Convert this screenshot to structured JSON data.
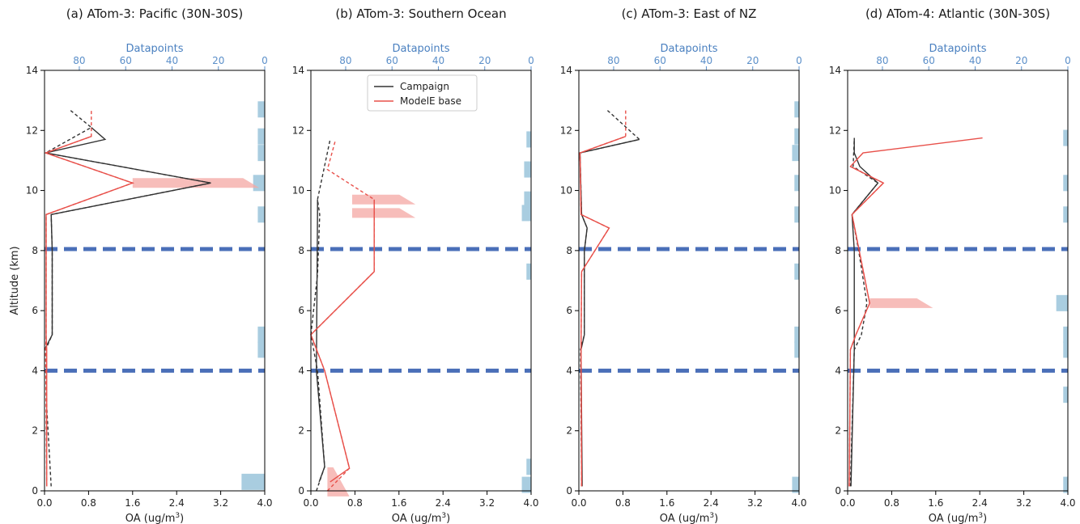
{
  "figure": {
    "ylabel": "Altitude (km)",
    "xlabel_prefix": "OA (ug/m",
    "xlabel_sup": "3",
    "xlabel_suffix": ")",
    "top_axis_label": "Datapoints",
    "colors": {
      "campaign": "#333333",
      "model": "#e8504a",
      "model_fill": "#f4a7a3",
      "bars": "#a9cde0",
      "hline": "#4a6fb8",
      "top_axis": "#5b8fc9"
    },
    "legend": {
      "campaign": "Campaign",
      "model": "ModelE base"
    }
  },
  "chart_data": [
    {
      "type": "line",
      "title": "(a) ATom-3: Pacific (30N-30S)",
      "xlim": [
        0,
        4.0
      ],
      "ylim": [
        0,
        14
      ],
      "xticks": [
        "0.0",
        "0.8",
        "1.6",
        "2.4",
        "3.2",
        "4.0"
      ],
      "yticks": [
        "0",
        "2",
        "4",
        "6",
        "8",
        "10",
        "12",
        "14"
      ],
      "top_xlim": [
        95,
        0
      ],
      "top_ticks": [
        "80",
        "60",
        "40",
        "20",
        "0"
      ],
      "hlines": [
        4.0,
        8.05
      ],
      "legend_shown": false,
      "series": [
        {
          "name": "Campaign",
          "style": "dashed",
          "points": [
            [
              0.12,
              0.15
            ],
            [
              0.04,
              2.8
            ],
            [
              0.02,
              4.7
            ],
            [
              0.14,
              5.2
            ],
            [
              0.14,
              8.0
            ],
            [
              0.12,
              9.2
            ],
            [
              3.02,
              10.25
            ],
            [
              0.02,
              11.25
            ],
            [
              0.85,
              12.1
            ],
            [
              0.45,
              12.7
            ]
          ]
        },
        {
          "name": "Campaign",
          "style": "solid",
          "points": [
            [
              0.0,
              4.7
            ],
            [
              0.14,
              5.2
            ],
            [
              0.14,
              8.0
            ],
            [
              0.12,
              9.2
            ],
            [
              3.02,
              10.25
            ],
            [
              0.02,
              11.25
            ],
            [
              1.1,
              11.7
            ],
            [
              0.85,
              12.1
            ]
          ]
        },
        {
          "name": "ModelE base",
          "style": "dashed",
          "points": [
            [
              0.04,
              0.15
            ],
            [
              0.02,
              4.7
            ],
            [
              0.03,
              5.2
            ],
            [
              0.03,
              8.0
            ],
            [
              0.03,
              9.2
            ],
            [
              1.6,
              10.25
            ],
            [
              0.02,
              11.25
            ],
            [
              0.85,
              11.8
            ],
            [
              0.85,
              12.7
            ]
          ]
        },
        {
          "name": "ModelE base",
          "style": "solid",
          "points": [
            [
              0.04,
              0.15
            ],
            [
              0.04,
              4.7
            ],
            [
              0.03,
              5.2
            ],
            [
              0.03,
              9.2
            ],
            [
              1.6,
              10.25
            ],
            [
              0.02,
              11.25
            ],
            [
              0.85,
              11.8
            ]
          ]
        }
      ],
      "datapoint_bars": [
        [
          0.3,
          10
        ],
        [
          4.7,
          3
        ],
        [
          5.2,
          3
        ],
        [
          9.2,
          3
        ],
        [
          10.25,
          5
        ],
        [
          11.25,
          3
        ],
        [
          11.8,
          3
        ],
        [
          12.7,
          3
        ]
      ],
      "model_spread": [
        [
          10.25,
          1.6,
          3.9
        ]
      ]
    },
    {
      "type": "line",
      "title": "(b) ATom-3: Southern Ocean",
      "xlim": [
        0,
        4.0
      ],
      "ylim": [
        0,
        14
      ],
      "xticks": [
        "0.0",
        "0.8",
        "1.6",
        "2.4",
        "3.2",
        "4.0"
      ],
      "yticks": [
        "0",
        "2",
        "4",
        "6",
        "8",
        "10",
        "12",
        "14"
      ],
      "top_xlim": [
        95,
        0
      ],
      "top_ticks": [
        "80",
        "60",
        "40",
        "20",
        "0"
      ],
      "hlines": [
        4.0,
        8.05
      ],
      "legend_shown": true,
      "series": [
        {
          "name": "Campaign",
          "style": "dashed",
          "points": [
            [
              0.1,
              0.0
            ],
            [
              0.25,
              0.8
            ],
            [
              0.12,
              4.0
            ],
            [
              0.0,
              5.2
            ],
            [
              0.12,
              7.2
            ],
            [
              0.16,
              9.2
            ],
            [
              0.12,
              9.7
            ],
            [
              0.35,
              11.7
            ]
          ]
        },
        {
          "name": "Campaign",
          "style": "solid",
          "points": [
            [
              0.15,
              0.3
            ],
            [
              0.25,
              0.8
            ],
            [
              0.1,
              4.0
            ],
            [
              0.12,
              9.25
            ],
            [
              0.12,
              9.7
            ]
          ]
        },
        {
          "name": "ModelE base",
          "style": "dashed",
          "points": [
            [
              0.3,
              0.0
            ],
            [
              0.7,
              0.75
            ],
            [
              0.25,
              4.0
            ],
            [
              0.0,
              5.2
            ],
            [
              1.15,
              7.3
            ],
            [
              1.15,
              9.7
            ],
            [
              0.3,
              10.7
            ],
            [
              0.45,
              11.7
            ]
          ]
        },
        {
          "name": "ModelE base",
          "style": "solid",
          "points": [
            [
              0.35,
              0.3
            ],
            [
              0.7,
              0.75
            ],
            [
              0.25,
              4.0
            ],
            [
              0.0,
              5.2
            ],
            [
              1.15,
              7.3
            ],
            [
              1.15,
              9.7
            ]
          ]
        }
      ],
      "datapoint_bars": [
        [
          0.2,
          4
        ],
        [
          0.8,
          2
        ],
        [
          7.3,
          2
        ],
        [
          9.25,
          4
        ],
        [
          9.7,
          3
        ],
        [
          10.7,
          3
        ],
        [
          11.7,
          2
        ]
      ],
      "model_spread": [
        [
          9.7,
          0.75,
          1.9
        ],
        [
          9.25,
          0.75,
          1.9
        ],
        [
          0.3,
          0.3,
          0.7
        ]
      ]
    },
    {
      "type": "line",
      "title": "(c) ATom-3: East of NZ",
      "xlim": [
        0,
        4.0
      ],
      "ylim": [
        0,
        14
      ],
      "xticks": [
        "0.0",
        "0.8",
        "1.6",
        "2.4",
        "3.2",
        "4.0"
      ],
      "yticks": [
        "0",
        "2",
        "4",
        "6",
        "8",
        "10",
        "12",
        "14"
      ],
      "top_xlim": [
        95,
        0
      ],
      "top_ticks": [
        "80",
        "60",
        "40",
        "20",
        "0"
      ],
      "hlines": [
        4.0,
        8.05
      ],
      "legend_shown": false,
      "series": [
        {
          "name": "Campaign",
          "style": "dashed",
          "points": [
            [
              0.05,
              0.15
            ],
            [
              0.03,
              4.7
            ],
            [
              0.1,
              5.2
            ],
            [
              0.1,
              8.0
            ],
            [
              0.15,
              8.75
            ],
            [
              0.05,
              9.2
            ],
            [
              0.02,
              11.25
            ],
            [
              1.1,
              11.7
            ],
            [
              0.5,
              12.7
            ]
          ]
        },
        {
          "name": "Campaign",
          "style": "solid",
          "points": [
            [
              0.06,
              0.15
            ],
            [
              0.04,
              4.7
            ],
            [
              0.1,
              5.2
            ],
            [
              0.1,
              8.0
            ],
            [
              0.15,
              8.75
            ],
            [
              0.05,
              9.2
            ],
            [
              0.02,
              11.25
            ],
            [
              1.1,
              11.7
            ]
          ]
        },
        {
          "name": "ModelE base",
          "style": "dashed",
          "points": [
            [
              0.05,
              0.15
            ],
            [
              0.04,
              4.7
            ],
            [
              0.05,
              7.3
            ],
            [
              0.55,
              8.75
            ],
            [
              0.04,
              9.2
            ],
            [
              0.02,
              11.25
            ],
            [
              0.85,
              11.8
            ],
            [
              0.85,
              12.7
            ]
          ]
        },
        {
          "name": "ModelE base",
          "style": "solid",
          "points": [
            [
              0.05,
              0.15
            ],
            [
              0.04,
              4.7
            ],
            [
              0.05,
              7.3
            ],
            [
              0.55,
              8.75
            ],
            [
              0.04,
              9.2
            ],
            [
              0.02,
              11.25
            ],
            [
              0.85,
              11.8
            ]
          ]
        }
      ],
      "datapoint_bars": [
        [
          0.2,
          3
        ],
        [
          4.7,
          2
        ],
        [
          5.2,
          2
        ],
        [
          7.3,
          2
        ],
        [
          9.2,
          2
        ],
        [
          10.25,
          2
        ],
        [
          11.25,
          3
        ],
        [
          11.8,
          2
        ],
        [
          12.7,
          2
        ]
      ],
      "model_spread": []
    },
    {
      "type": "line",
      "title": "(d) ATom-4: Atlantic (30N-30S)",
      "xlim": [
        0,
        4.0
      ],
      "ylim": [
        0,
        14
      ],
      "xticks": [
        "0.0",
        "0.8",
        "1.6",
        "2.4",
        "3.2",
        "4.0"
      ],
      "yticks": [
        "0",
        "2",
        "4",
        "6",
        "8",
        "10",
        "12",
        "14"
      ],
      "top_xlim": [
        95,
        0
      ],
      "top_ticks": [
        "80",
        "60",
        "40",
        "20",
        "0"
      ],
      "hlines": [
        4.0,
        8.05
      ],
      "legend_shown": false,
      "series": [
        {
          "name": "Campaign",
          "style": "dashed",
          "points": [
            [
              0.05,
              0.15
            ],
            [
              0.12,
              4.7
            ],
            [
              0.25,
              5.2
            ],
            [
              0.35,
              6.25
            ],
            [
              0.2,
              8.0
            ],
            [
              0.08,
              9.2
            ],
            [
              0.55,
              10.25
            ],
            [
              0.1,
              10.8
            ],
            [
              0.12,
              11.75
            ]
          ]
        },
        {
          "name": "Campaign",
          "style": "solid",
          "points": [
            [
              0.06,
              0.15
            ],
            [
              0.12,
              4.7
            ],
            [
              0.12,
              5.2
            ],
            [
              0.12,
              8.0
            ],
            [
              0.08,
              9.2
            ],
            [
              0.55,
              10.25
            ],
            [
              0.22,
              10.8
            ],
            [
              0.12,
              11.25
            ],
            [
              0.12,
              11.75
            ]
          ]
        },
        {
          "name": "ModelE base",
          "style": "dashed",
          "points": [
            [
              0.03,
              0.15
            ],
            [
              0.05,
              4.7
            ],
            [
              0.15,
              5.2
            ],
            [
              0.4,
              6.25
            ],
            [
              0.08,
              9.2
            ],
            [
              0.65,
              10.25
            ],
            [
              0.05,
              10.8
            ]
          ]
        },
        {
          "name": "ModelE base",
          "style": "solid",
          "points": [
            [
              0.03,
              0.15
            ],
            [
              0.05,
              4.7
            ],
            [
              0.15,
              5.2
            ],
            [
              0.4,
              6.25
            ],
            [
              0.08,
              9.2
            ],
            [
              0.65,
              10.25
            ],
            [
              0.05,
              10.8
            ],
            [
              0.28,
              11.25
            ],
            [
              2.45,
              11.75
            ]
          ]
        }
      ],
      "datapoint_bars": [
        [
          0.2,
          2
        ],
        [
          3.2,
          2
        ],
        [
          4.7,
          2
        ],
        [
          5.2,
          2
        ],
        [
          6.25,
          5
        ],
        [
          9.2,
          2
        ],
        [
          10.25,
          2
        ],
        [
          11.75,
          2
        ]
      ],
      "model_spread": [
        [
          6.25,
          0.4,
          1.55
        ]
      ]
    }
  ]
}
